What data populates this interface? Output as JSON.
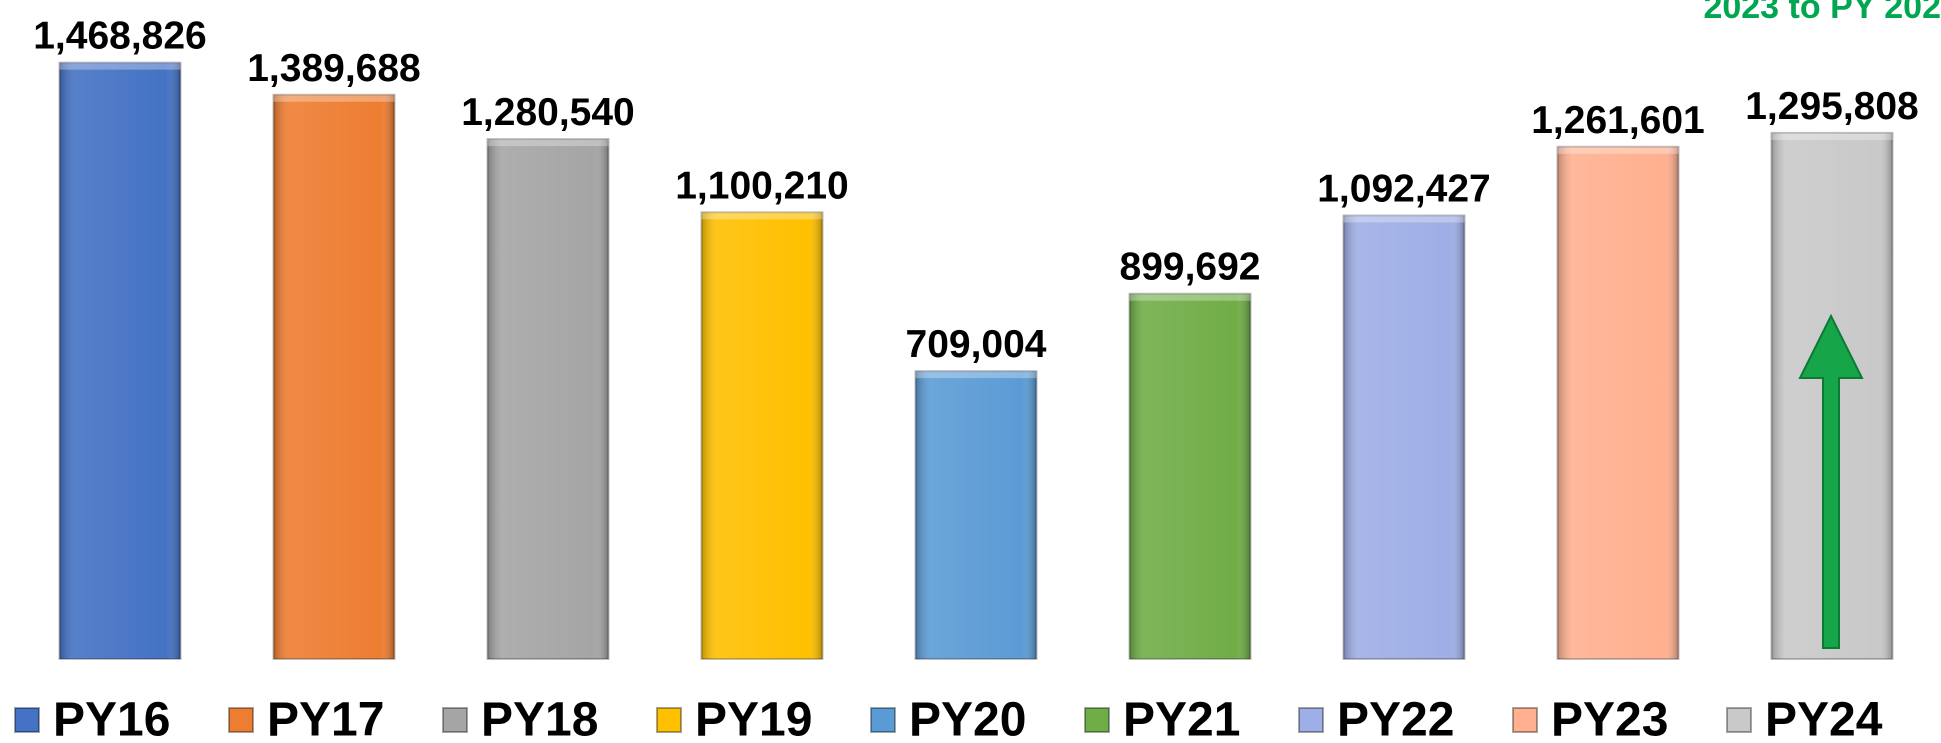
{
  "chart_data": {
    "type": "bar",
    "annotation": "2023 to PY 202",
    "categories": [
      "PY16",
      "PY17",
      "PY18",
      "PY19",
      "PY20",
      "PY21",
      "PY22",
      "PY23",
      "PY24"
    ],
    "values": [
      1468826,
      1389688,
      1280540,
      1100210,
      709004,
      899692,
      1092427,
      1261601,
      1295808
    ],
    "value_labels": [
      "1,468,826",
      "1,389,688",
      "1,280,540",
      "1,100,210",
      "709,004",
      "899,692",
      "1,092,427",
      "1,261,601",
      "1,295,808"
    ],
    "colors": [
      "#4472c4",
      "#ed7d31",
      "#a5a5a5",
      "#ffc000",
      "#5b9bd5",
      "#70ad47",
      "#9eaee6",
      "#ffb08f",
      "#c9c9c9"
    ],
    "ylim": [
      0,
      1500000
    ],
    "legend": "bottom"
  }
}
